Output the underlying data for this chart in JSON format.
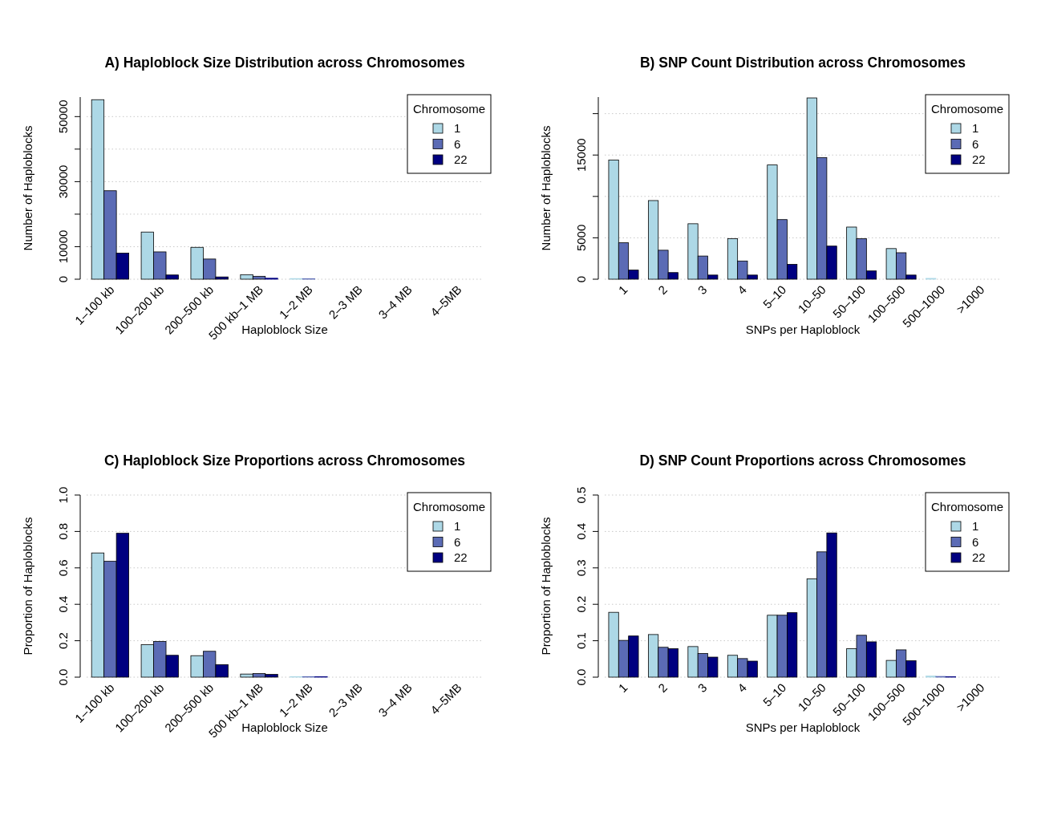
{
  "chart_data": [
    {
      "type": "bar",
      "title": "A) Haploblock Size Distribution across Chromosomes",
      "xlabel": "Haploblock Size",
      "ylabel": "Number of Haploblocks",
      "legend_title": "Chromosome",
      "legend": "top right",
      "grid": "y",
      "categories": [
        "1–100 kb",
        "100–200 kb",
        "200–500 kb",
        "500 kb–1 MB",
        "1–2 MB",
        "2–3 MB",
        "3–4 MB",
        "4–5MB"
      ],
      "ylim": [
        0,
        56000
      ],
      "yticks": [
        0,
        10000,
        {
          "value": 20000,
          "label": null
        },
        30000,
        {
          "value": 40000,
          "label": null
        },
        50000
      ],
      "series": [
        {
          "name": "1",
          "color": "#add8e6",
          "values": [
            55200,
            14500,
            9800,
            1400,
            200,
            0,
            0,
            0
          ]
        },
        {
          "name": "6",
          "color": "#5b6bb5",
          "values": [
            27200,
            8400,
            6200,
            900,
            100,
            0,
            0,
            0
          ]
        },
        {
          "name": "22",
          "color": "#000080",
          "values": [
            8000,
            1300,
            700,
            300,
            0,
            0,
            0,
            0
          ]
        }
      ]
    },
    {
      "type": "bar",
      "title": "B) SNP Count Distribution across Chromosomes",
      "xlabel": "SNPs per Haploblock",
      "ylabel": "Number of Haploblocks",
      "legend_title": "Chromosome",
      "legend": "top right",
      "grid": "y",
      "categories": [
        "1",
        "2",
        "3",
        "4",
        "5–10",
        "10–50",
        "50–100",
        "100–500",
        "500–1000",
        ">1000"
      ],
      "ylim": [
        0,
        22000
      ],
      "yticks": [
        0,
        5000,
        {
          "value": 10000,
          "label": null
        },
        15000,
        {
          "value": 20000,
          "label": null
        }
      ],
      "series": [
        {
          "name": "1",
          "color": "#add8e6",
          "values": [
            14400,
            9500,
            6700,
            4900,
            13800,
            21900,
            6300,
            3700,
            100,
            0
          ]
        },
        {
          "name": "6",
          "color": "#5b6bb5",
          "values": [
            4400,
            3500,
            2800,
            2200,
            7200,
            14700,
            4900,
            3200,
            0,
            0
          ]
        },
        {
          "name": "22",
          "color": "#000080",
          "values": [
            1100,
            800,
            500,
            500,
            1800,
            4000,
            1000,
            500,
            0,
            0
          ]
        }
      ]
    },
    {
      "type": "bar",
      "title": "C) Haploblock Size Proportions across Chromosomes",
      "xlabel": "Haploblock Size",
      "ylabel": "Proportion of Haploblocks",
      "legend_title": "Chromosome",
      "legend": "top right",
      "grid": "y",
      "categories": [
        "1–100 kb",
        "100–200 kb",
        "200–500 kb",
        "500 kb–1 MB",
        "1–2 MB",
        "2–3 MB",
        "3–4 MB",
        "4–5MB"
      ],
      "ylim": [
        0,
        1.0
      ],
      "yticks": [
        {
          "value": 0,
          "label": "0.0"
        },
        0.2,
        0.4,
        0.6,
        0.8,
        {
          "value": 1,
          "label": "1.0"
        }
      ],
      "series": [
        {
          "name": "1",
          "color": "#add8e6",
          "values": [
            0.682,
            0.178,
            0.118,
            0.017,
            0.003,
            0,
            0,
            0
          ]
        },
        {
          "name": "6",
          "color": "#5b6bb5",
          "values": [
            0.636,
            0.196,
            0.142,
            0.02,
            0.003,
            0,
            0,
            0
          ]
        },
        {
          "name": "22",
          "color": "#000080",
          "values": [
            0.79,
            0.12,
            0.069,
            0.015,
            0.002,
            0,
            0,
            0
          ]
        }
      ]
    },
    {
      "type": "bar",
      "title": "D) SNP Count Proportions across Chromosomes",
      "xlabel": "SNPs per Haploblock",
      "ylabel": "Proportion of Haploblocks",
      "legend_title": "Chromosome",
      "legend": "top right",
      "grid": "y",
      "categories": [
        "1",
        "2",
        "3",
        "4",
        "5–10",
        "10–50",
        "50–100",
        "100–500",
        "500–1000",
        ">1000"
      ],
      "ylim": [
        0,
        0.5
      ],
      "yticks": [
        {
          "value": 0,
          "label": "0.0"
        },
        0.1,
        0.2,
        0.3,
        0.4,
        0.5
      ],
      "series": [
        {
          "name": "1",
          "color": "#add8e6",
          "values": [
            0.178,
            0.117,
            0.084,
            0.06,
            0.17,
            0.27,
            0.078,
            0.046,
            0.003,
            0
          ]
        },
        {
          "name": "6",
          "color": "#5b6bb5",
          "values": [
            0.101,
            0.082,
            0.065,
            0.051,
            0.17,
            0.344,
            0.115,
            0.075,
            0.002,
            0
          ]
        },
        {
          "name": "22",
          "color": "#000080",
          "values": [
            0.113,
            0.078,
            0.055,
            0.044,
            0.177,
            0.396,
            0.097,
            0.045,
            0.001,
            0
          ]
        }
      ]
    }
  ]
}
